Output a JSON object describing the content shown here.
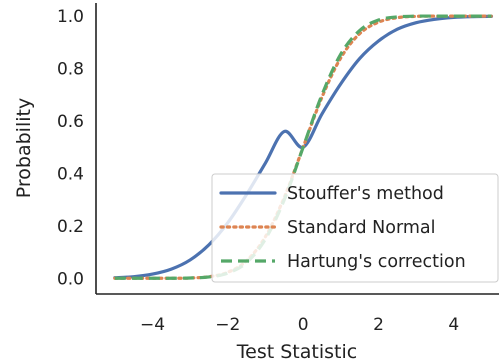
{
  "chart_data": {
    "type": "line",
    "title": "",
    "xlabel": "Test Statistic",
    "ylabel": "Probability",
    "xlim": [
      -5.5,
      5.2
    ],
    "ylim": [
      -0.06,
      1.05
    ],
    "xticks": [
      -4,
      -2,
      0,
      2,
      4
    ],
    "xtick_labels": [
      "−4",
      "−2",
      "0",
      "2",
      "4"
    ],
    "yticks": [
      0.0,
      0.2,
      0.4,
      0.6,
      0.8,
      1.0
    ],
    "ytick_labels": [
      "0.0",
      "0.2",
      "0.4",
      "0.6",
      "0.8",
      "1.0"
    ],
    "grid": false,
    "legend_position": "lower-right",
    "x": [
      -5,
      -4.5,
      -4,
      -3.5,
      -3,
      -2.5,
      -2,
      -1.5,
      -1,
      -0.5,
      0,
      0.5,
      1,
      1.5,
      2,
      2.5,
      3,
      3.5,
      4,
      4.5,
      5
    ],
    "series": [
      {
        "name": "Stouffer's method",
        "color": "#4c72b0",
        "style": "solid",
        "values": [
          0.002,
          0.006,
          0.016,
          0.035,
          0.07,
          0.128,
          0.212,
          0.32,
          0.44,
          0.56,
          0.5,
          0.627,
          0.742,
          0.838,
          0.905,
          0.95,
          0.975,
          0.988,
          0.995,
          0.998,
          0.999
        ]
      },
      {
        "name": "Standard Normal",
        "color": "#dd8452",
        "style": "dotted",
        "values": [
          0.0,
          0.0,
          0.0,
          0.0,
          0.001,
          0.006,
          0.023,
          0.067,
          0.159,
          0.309,
          0.5,
          0.691,
          0.841,
          0.933,
          0.977,
          0.994,
          0.999,
          1.0,
          1.0,
          1.0,
          1.0
        ]
      },
      {
        "name": "Hartung's correction",
        "color": "#55a868",
        "style": "dashed",
        "values": [
          0.0,
          0.0,
          0.0,
          0.0,
          0.001,
          0.005,
          0.02,
          0.06,
          0.15,
          0.3,
          0.5,
          0.7,
          0.855,
          0.945,
          0.985,
          0.997,
          1.0,
          1.0,
          1.0,
          1.0,
          1.0
        ]
      }
    ]
  }
}
